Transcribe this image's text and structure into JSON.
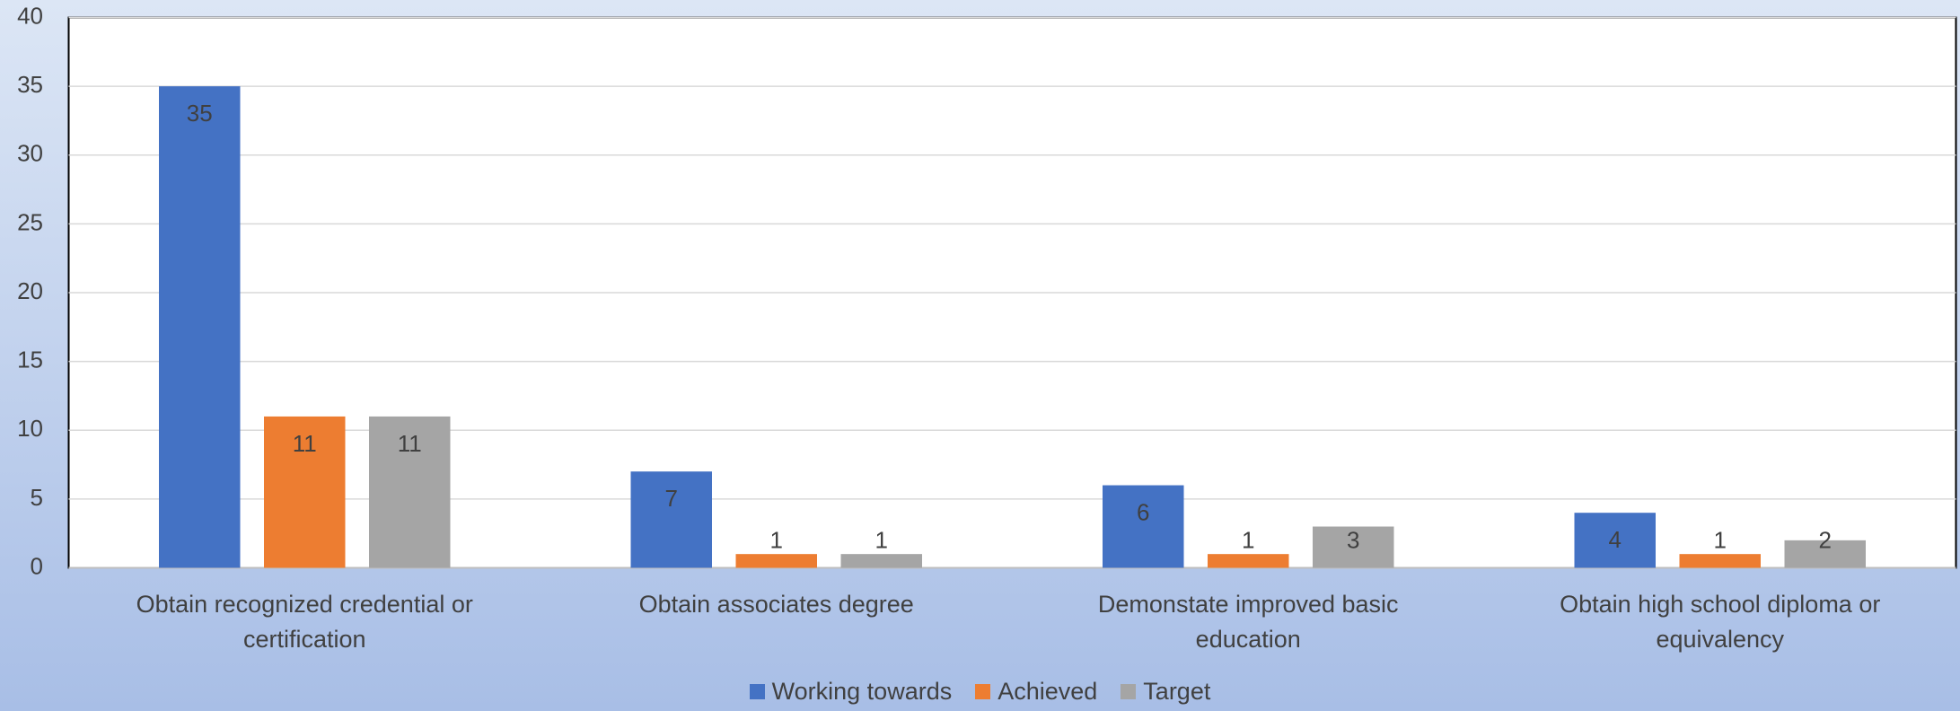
{
  "chart_data": {
    "type": "bar",
    "categories": [
      "Obtain recognized credential or certification",
      "Obtain associates degree",
      "Demonstate improved basic education",
      "Obtain high school diploma or equivalency"
    ],
    "series": [
      {
        "name": "Working towards",
        "color": "#4472c4",
        "values": [
          35,
          7,
          6,
          4
        ]
      },
      {
        "name": "Achieved",
        "color": "#ed7d31",
        "values": [
          11,
          1,
          1,
          1
        ]
      },
      {
        "name": "Target",
        "color": "#a5a5a5",
        "values": [
          11,
          1,
          3,
          2
        ]
      }
    ],
    "ylim": [
      0,
      40
    ],
    "yticks": [
      0,
      5,
      10,
      15,
      20,
      25,
      30,
      35,
      40
    ],
    "grid": true,
    "legend": "bottom"
  }
}
